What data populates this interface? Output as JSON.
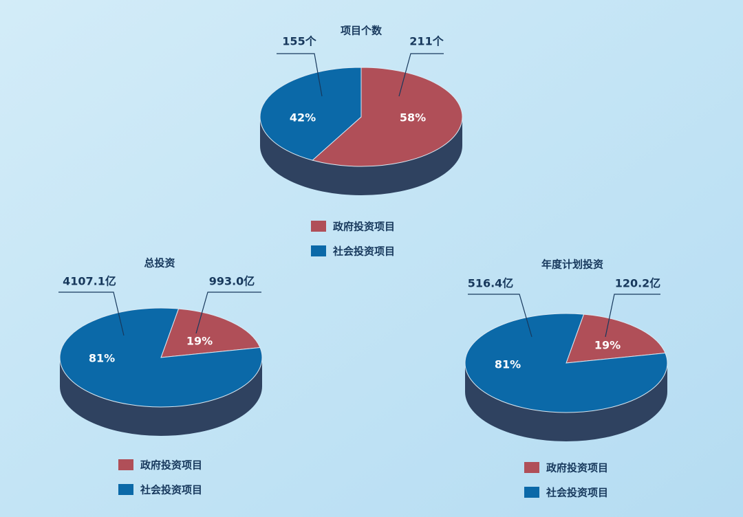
{
  "chart_data": [
    {
      "type": "pie3d",
      "title": "项目个数",
      "categories": [
        "政府投资项目",
        "社会投资项目"
      ],
      "values": [
        58,
        42
      ],
      "value_labels": [
        "58%",
        "42%"
      ],
      "amount_labels": [
        "211个",
        "155个"
      ],
      "colors": [
        "#b04f58",
        "#0b69a8"
      ]
    },
    {
      "type": "pie3d",
      "title": "总投资",
      "categories": [
        "政府投资项目",
        "社会投资项目"
      ],
      "values": [
        19,
        81
      ],
      "value_labels": [
        "19%",
        "81%"
      ],
      "amount_labels": [
        "993.0亿",
        "4107.1亿"
      ],
      "colors": [
        "#b04f58",
        "#0b69a8"
      ]
    },
    {
      "type": "pie3d",
      "title": "年度计划投资",
      "categories": [
        "政府投资项目",
        "社会投资项目"
      ],
      "values": [
        19,
        81
      ],
      "value_labels": [
        "19%",
        "81%"
      ],
      "amount_labels": [
        "120.2亿",
        "516.4亿"
      ],
      "colors": [
        "#b04f58",
        "#0b69a8"
      ]
    }
  ]
}
